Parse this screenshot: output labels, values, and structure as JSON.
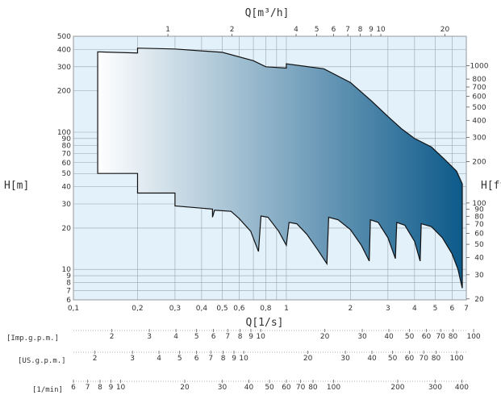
{
  "chart_data": {
    "type": "area",
    "x_axis": {
      "label": "Q[1/s]",
      "scale": "log",
      "range": [
        0.1,
        7
      ],
      "ticks": [
        "0,1",
        "0,2",
        "0,3",
        "0,4",
        "0,5",
        "0,6",
        "0,8",
        "1",
        "2",
        "3",
        "4",
        "5",
        "6",
        "7"
      ]
    },
    "x2_axis": {
      "label": "Q[m³/h]",
      "scale": "log",
      "ticks": [
        "1",
        "2",
        "4",
        "5",
        "6",
        "7",
        "8",
        "9",
        "10",
        "20"
      ]
    },
    "y_axis": {
      "label": "H[m]",
      "scale": "log",
      "range": [
        6,
        500
      ],
      "ticks": [
        "6",
        "7",
        "8",
        "9",
        "10",
        "20",
        "30",
        "40",
        "50",
        "60",
        "70",
        "80",
        "90",
        "100",
        "200",
        "300",
        "400",
        "500"
      ]
    },
    "y2_axis": {
      "label": "H[ft]",
      "scale": "log",
      "ticks": [
        "20",
        "30",
        "40",
        "50",
        "60",
        "70",
        "80",
        "90",
        "100",
        "200",
        "300",
        "400",
        "500",
        "600",
        "700",
        "800",
        "1000"
      ]
    },
    "extra_axes": [
      {
        "label": "[Imp.g.p.m.]",
        "ticks": [
          "2",
          "3",
          "4",
          "5",
          "6",
          "7",
          "8",
          "9",
          "10",
          "20",
          "30",
          "40",
          "50",
          "60",
          "70",
          "80",
          "100"
        ]
      },
      {
        "label": "[US.g.p.m.]",
        "ticks": [
          "2",
          "3",
          "4",
          "5",
          "6",
          "7",
          "8",
          "9",
          "10",
          "20",
          "30",
          "40",
          "50",
          "60",
          "70",
          "80",
          "100"
        ]
      },
      {
        "label": "[1/min]",
        "ticks": [
          "6",
          "7",
          "8",
          "9",
          "10",
          "20",
          "30",
          "40",
          "50",
          "60",
          "70",
          "80",
          "100",
          "200",
          "300",
          "400"
        ]
      }
    ],
    "upper_boundary": [
      {
        "x": 0.13,
        "y": 385
      },
      {
        "x": 0.2,
        "y": 378
      },
      {
        "x": 0.2,
        "y": 410
      },
      {
        "x": 0.3,
        "y": 404
      },
      {
        "x": 0.5,
        "y": 382
      },
      {
        "x": 0.7,
        "y": 332
      },
      {
        "x": 0.8,
        "y": 300
      },
      {
        "x": 1.0,
        "y": 293
      },
      {
        "x": 1.0,
        "y": 315
      },
      {
        "x": 1.5,
        "y": 290
      },
      {
        "x": 2.0,
        "y": 230
      },
      {
        "x": 2.5,
        "y": 170
      },
      {
        "x": 3.0,
        "y": 130
      },
      {
        "x": 3.5,
        "y": 105
      },
      {
        "x": 4.0,
        "y": 90
      },
      {
        "x": 4.8,
        "y": 78
      },
      {
        "x": 5.5,
        "y": 64
      },
      {
        "x": 6.3,
        "y": 52
      },
      {
        "x": 6.7,
        "y": 42
      }
    ],
    "lower_boundary": [
      {
        "x": 0.13,
        "y": 50
      },
      {
        "x": 0.2,
        "y": 50
      },
      {
        "x": 0.2,
        "y": 36
      },
      {
        "x": 0.3,
        "y": 36
      },
      {
        "x": 0.3,
        "y": 29
      },
      {
        "x": 0.45,
        "y": 27.5
      },
      {
        "x": 0.45,
        "y": 24
      },
      {
        "x": 0.46,
        "y": 27
      },
      {
        "x": 0.55,
        "y": 26.5
      },
      {
        "x": 0.6,
        "y": 23.5
      },
      {
        "x": 0.68,
        "y": 19
      },
      {
        "x": 0.74,
        "y": 13.5
      },
      {
        "x": 0.76,
        "y": 24.5
      },
      {
        "x": 0.82,
        "y": 24
      },
      {
        "x": 0.92,
        "y": 19
      },
      {
        "x": 1.0,
        "y": 15
      },
      {
        "x": 1.03,
        "y": 22
      },
      {
        "x": 1.12,
        "y": 21.5
      },
      {
        "x": 1.25,
        "y": 18
      },
      {
        "x": 1.4,
        "y": 14
      },
      {
        "x": 1.55,
        "y": 11
      },
      {
        "x": 1.58,
        "y": 24
      },
      {
        "x": 1.75,
        "y": 23
      },
      {
        "x": 2.0,
        "y": 19.5
      },
      {
        "x": 2.25,
        "y": 15
      },
      {
        "x": 2.45,
        "y": 11.5
      },
      {
        "x": 2.48,
        "y": 23
      },
      {
        "x": 2.7,
        "y": 22
      },
      {
        "x": 3.0,
        "y": 17
      },
      {
        "x": 3.25,
        "y": 12
      },
      {
        "x": 3.3,
        "y": 22
      },
      {
        "x": 3.6,
        "y": 21
      },
      {
        "x": 4.0,
        "y": 16
      },
      {
        "x": 4.25,
        "y": 11.5
      },
      {
        "x": 4.3,
        "y": 21.5
      },
      {
        "x": 4.8,
        "y": 20.5
      },
      {
        "x": 5.4,
        "y": 17
      },
      {
        "x": 6.0,
        "y": 13
      },
      {
        "x": 6.4,
        "y": 10
      },
      {
        "x": 6.7,
        "y": 7.3
      }
    ],
    "grid": true,
    "colors": {
      "fill_start": "#ffffff",
      "fill_end": "#0d5a8a",
      "plot_bg": "#e3f1fb",
      "grid": "#9aa3ab",
      "outline": "#111111"
    }
  }
}
